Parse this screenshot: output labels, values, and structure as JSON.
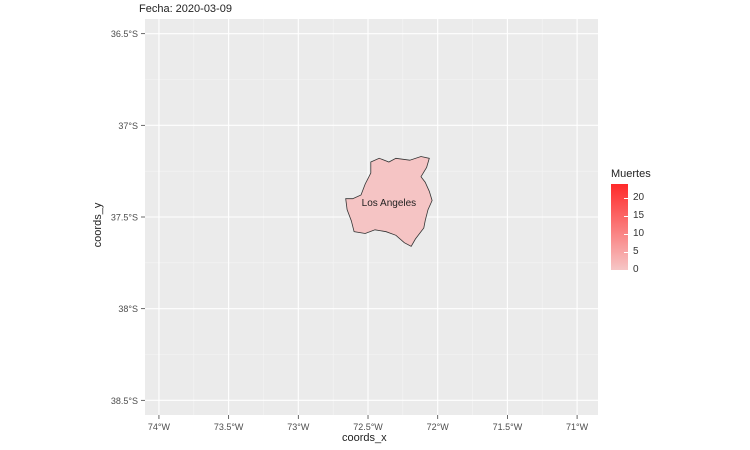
{
  "title": "Fecha: 2020-03-09",
  "chart_data": {
    "type": "map",
    "xlabel": "coords_x",
    "ylabel": "coords_y",
    "xlim": [
      -74.1,
      -70.85
    ],
    "ylim": [
      -38.58,
      -36.42
    ],
    "x_ticks": [
      {
        "value": -74.0,
        "label": "74°W"
      },
      {
        "value": -73.5,
        "label": "73.5°W"
      },
      {
        "value": -73.0,
        "label": "73°W"
      },
      {
        "value": -72.5,
        "label": "72.5°W"
      },
      {
        "value": -72.0,
        "label": "72°W"
      },
      {
        "value": -71.5,
        "label": "71.5°W"
      },
      {
        "value": -71.0,
        "label": "71°W"
      }
    ],
    "y_ticks": [
      {
        "value": -36.5,
        "label": "36.5°S"
      },
      {
        "value": -37.0,
        "label": "37°S"
      },
      {
        "value": -37.5,
        "label": "37.5°S"
      },
      {
        "value": -38.0,
        "label": "38°S"
      },
      {
        "value": -38.5,
        "label": "38.5°S"
      }
    ],
    "grid": true,
    "regions": [
      {
        "name": "Los Angeles",
        "muertes": 0,
        "fill": "#f5c4c4",
        "label_at": [
          -72.35,
          -37.42
        ],
        "polygon": [
          [
            -72.48,
            -37.2
          ],
          [
            -72.42,
            -37.18
          ],
          [
            -72.35,
            -37.2
          ],
          [
            -72.3,
            -37.18
          ],
          [
            -72.2,
            -37.19
          ],
          [
            -72.12,
            -37.17
          ],
          [
            -72.06,
            -37.18
          ],
          [
            -72.08,
            -37.23
          ],
          [
            -72.12,
            -37.28
          ],
          [
            -72.09,
            -37.31
          ],
          [
            -72.06,
            -37.36
          ],
          [
            -72.04,
            -37.41
          ],
          [
            -72.07,
            -37.46
          ],
          [
            -72.09,
            -37.52
          ],
          [
            -72.1,
            -37.56
          ],
          [
            -72.16,
            -37.62
          ],
          [
            -72.19,
            -37.66
          ],
          [
            -72.24,
            -37.64
          ],
          [
            -72.3,
            -37.6
          ],
          [
            -72.37,
            -37.58
          ],
          [
            -72.45,
            -37.57
          ],
          [
            -72.52,
            -37.59
          ],
          [
            -72.6,
            -37.58
          ],
          [
            -72.62,
            -37.52
          ],
          [
            -72.65,
            -37.46
          ],
          [
            -72.66,
            -37.4
          ],
          [
            -72.61,
            -37.4
          ],
          [
            -72.55,
            -37.38
          ],
          [
            -72.52,
            -37.32
          ],
          [
            -72.48,
            -37.26
          ],
          [
            -72.48,
            -37.2
          ]
        ]
      }
    ],
    "legend": {
      "title": "Muertes",
      "min": 0,
      "max": 24,
      "breaks": [
        0,
        5,
        10,
        15,
        20
      ],
      "color_low": "#f6c6c6",
      "color_high": "#ff2a2a",
      "position": "right"
    }
  }
}
